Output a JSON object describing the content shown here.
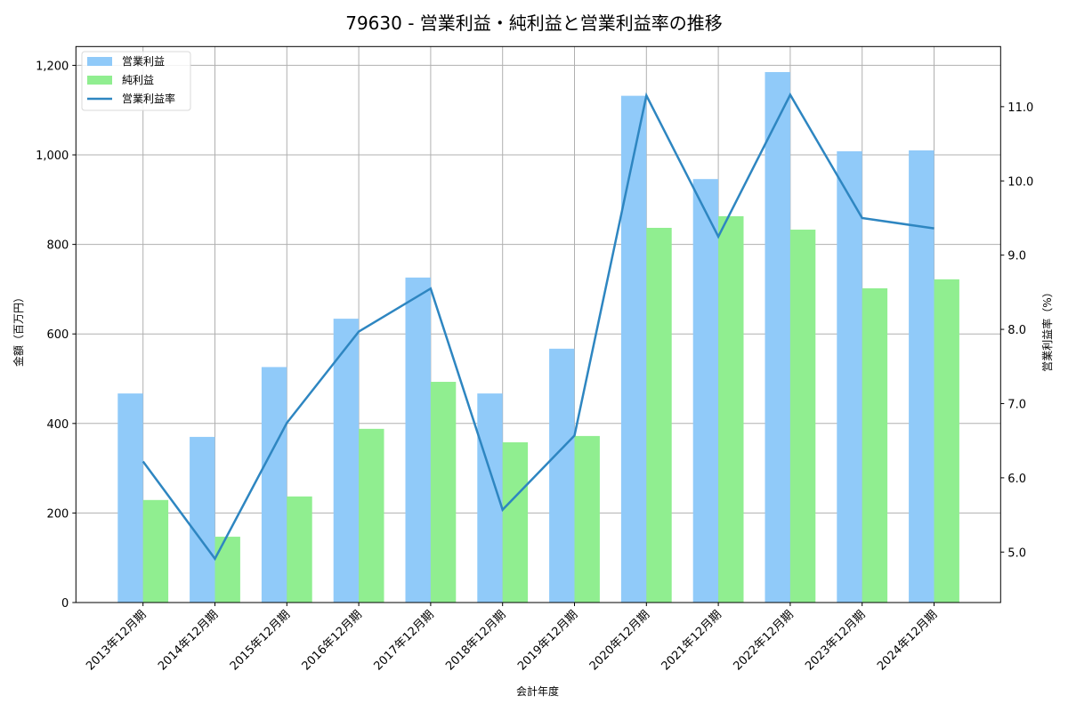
{
  "chart_data": {
    "type": "bar",
    "title": "79630 - 営業利益・純利益と営業利益率の推移",
    "xlabel": "会計年度",
    "ylabel": "金額（百万円）",
    "ylabel_right": "営業利益率（%）",
    "categories": [
      "2013年12月期",
      "2014年12月期",
      "2015年12月期",
      "2016年12月期",
      "2017年12月期",
      "2018年12月期",
      "2019年12月期",
      "2020年12月期",
      "2021年12月期",
      "2022年12月期",
      "2023年12月期",
      "2024年12月期"
    ],
    "series": [
      {
        "name": "営業利益",
        "type": "bar",
        "axis": "left",
        "color": "#90CAF9",
        "values": [
          467,
          370,
          526,
          634,
          726,
          467,
          567,
          1132,
          946,
          1185,
          1008,
          1010
        ]
      },
      {
        "name": "純利益",
        "type": "bar",
        "axis": "left",
        "color": "#90EE90",
        "values": [
          229,
          147,
          237,
          388,
          493,
          358,
          372,
          837,
          863,
          833,
          702,
          722
        ]
      },
      {
        "name": "営業利益率",
        "type": "line",
        "axis": "right",
        "color": "#2E86C1",
        "values": [
          6.22,
          4.91,
          6.74,
          7.97,
          8.55,
          5.57,
          6.57,
          11.15,
          9.25,
          11.16,
          9.5,
          9.36
        ]
      }
    ],
    "ylim": [
      0,
      1242
    ],
    "yticks": [
      0,
      200,
      400,
      600,
      800,
      1000,
      1200
    ],
    "ytick_labels": [
      "0",
      "200",
      "400",
      "600",
      "800",
      "1,000",
      "1,200"
    ],
    "ylim_right": [
      4.32,
      11.81
    ],
    "yticks_right": [
      5.0,
      6.0,
      7.0,
      8.0,
      9.0,
      10.0,
      11.0
    ],
    "ytick_labels_right": [
      "5.0",
      "6.0",
      "7.0",
      "8.0",
      "9.0",
      "10.0",
      "11.0"
    ],
    "grid": true,
    "legend_position": "upper left"
  }
}
